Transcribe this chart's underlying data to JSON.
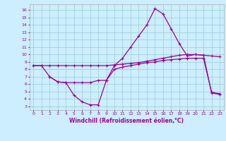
{
  "xlabel": "Windchill (Refroidissement éolien,°C)",
  "xlim": [
    -0.5,
    23.5
  ],
  "ylim": [
    2.5,
    16.8
  ],
  "yticks": [
    3,
    4,
    5,
    6,
    7,
    8,
    9,
    10,
    11,
    12,
    13,
    14,
    15,
    16
  ],
  "xticks": [
    0,
    1,
    2,
    3,
    4,
    5,
    6,
    7,
    8,
    9,
    10,
    11,
    12,
    13,
    14,
    15,
    16,
    17,
    18,
    19,
    20,
    21,
    22,
    23
  ],
  "bg_color": "#cceeff",
  "grid_color": "#99cccc",
  "line_color": "#990099",
  "line1_x": [
    0,
    1,
    2,
    3,
    4,
    5,
    6,
    7,
    8,
    9,
    10,
    11,
    12,
    13,
    14,
    15,
    16,
    17,
    18,
    19,
    20,
    21,
    22,
    23
  ],
  "line1_y": [
    8.5,
    8.5,
    8.5,
    8.5,
    8.5,
    8.5,
    8.5,
    8.5,
    8.5,
    8.5,
    8.6,
    8.7,
    8.8,
    8.9,
    9.1,
    9.3,
    9.5,
    9.7,
    9.9,
    10.0,
    10.0,
    9.9,
    9.8,
    9.7
  ],
  "line2_x": [
    0,
    1,
    2,
    3,
    4,
    5,
    6,
    7,
    8,
    9,
    10,
    11,
    12,
    13,
    14,
    15,
    16,
    17,
    18,
    19,
    20,
    21,
    22,
    23
  ],
  "line2_y": [
    8.5,
    8.5,
    7.0,
    6.3,
    6.2,
    4.5,
    3.6,
    3.2,
    3.2,
    6.5,
    8.5,
    9.5,
    11.0,
    12.5,
    14.0,
    16.2,
    15.5,
    13.5,
    11.5,
    9.8,
    10.0,
    9.9,
    4.8,
    4.6
  ],
  "line3_x": [
    2,
    3,
    4,
    5,
    6,
    7,
    8,
    9,
    10,
    11,
    12,
    13,
    14,
    15,
    16,
    17,
    18,
    19,
    20,
    21,
    22,
    23
  ],
  "line3_y": [
    7.0,
    6.3,
    6.2,
    6.2,
    6.2,
    6.2,
    6.5,
    6.5,
    8.0,
    8.3,
    8.5,
    8.7,
    8.9,
    9.0,
    9.2,
    9.3,
    9.4,
    9.5,
    9.5,
    9.5,
    4.9,
    4.7
  ]
}
